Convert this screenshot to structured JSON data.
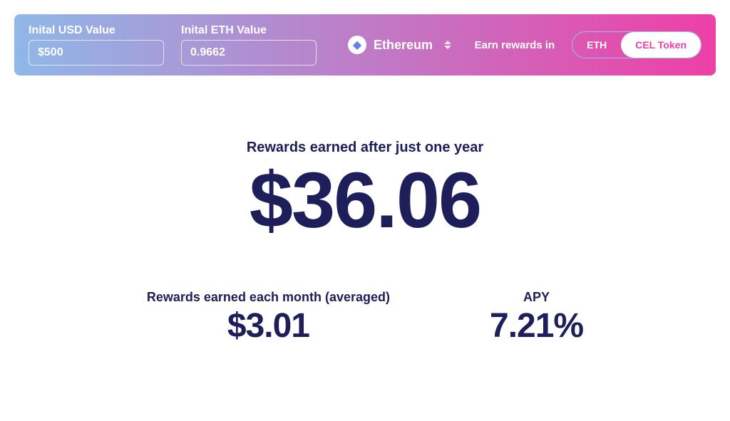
{
  "colors": {
    "gradient_start": "#8fb8e8",
    "gradient_end": "#ee3fa5",
    "text_navy": "#1e1e5a",
    "accent_pink": "#ee3fa5",
    "white": "#ffffff"
  },
  "header": {
    "usd_input": {
      "label": "Inital USD Value",
      "value": "$500"
    },
    "eth_input": {
      "label": "Inital ETH Value",
      "value": "0.9662"
    },
    "currency": {
      "name": "Ethereum"
    },
    "earn_label": "Earn rewards in",
    "toggle": {
      "option_a": "ETH",
      "option_b": "CEL Token",
      "active": "CEL Token"
    }
  },
  "main": {
    "yearly_label": "Rewards earned after just one year",
    "yearly_value": "$36.06",
    "monthly_label": "Rewards earned each month (averaged)",
    "monthly_value": "$3.01",
    "apy_label": "APY",
    "apy_value": "7.21%"
  },
  "styling": {
    "big_amount_fontsize": 110,
    "section_label_fontsize": 20,
    "stat_value_fontsize": 48,
    "header_radius": 8,
    "pill_radius": 999
  }
}
